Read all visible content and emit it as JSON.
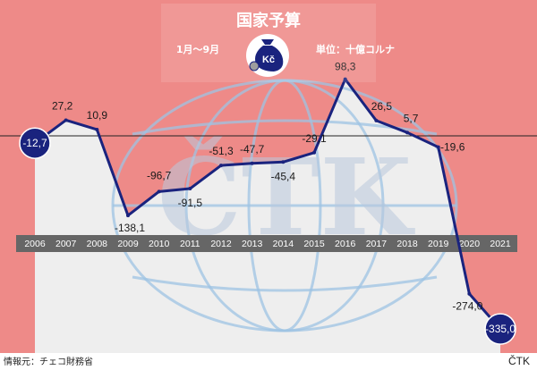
{
  "chart_data": {
    "type": "line",
    "title": "国家予算",
    "period": "1月～9月",
    "unit": "単位：十億コルナ",
    "icon_label": "Kč",
    "x": [
      "2006",
      "2007",
      "2008",
      "2009",
      "2010",
      "2011",
      "2012",
      "2013",
      "2014",
      "2015",
      "2016",
      "2017",
      "2018",
      "2019",
      "2020",
      "2021"
    ],
    "values": [
      -12.7,
      27.2,
      10.9,
      -138.1,
      -96.7,
      -91.5,
      -51.3,
      -47.7,
      -45.4,
      -29.1,
      98.3,
      26.5,
      5.7,
      -19.6,
      -274.0,
      -335.0
    ],
    "value_labels": [
      "-12,7",
      "27,2",
      "10,9",
      "-138,1",
      "-96,7",
      "-91,5",
      "-51,3",
      "-47,7",
      "-45,4",
      "-29,1",
      "98,3",
      "26,5",
      "5,7",
      "-19,6",
      "-274,0",
      "-335,0"
    ],
    "highlighted": [
      0,
      15
    ],
    "ylim": [
      -345,
      120
    ],
    "source": "情報元：チェコ財務省",
    "watermark": "ČTK",
    "credit": "ČTK",
    "colors": {
      "background": "#ee8a88",
      "line": "#1a237e",
      "below_fill": "#eeeeee",
      "axis_band": "#666666",
      "watermark": "#b9c9dc"
    }
  }
}
